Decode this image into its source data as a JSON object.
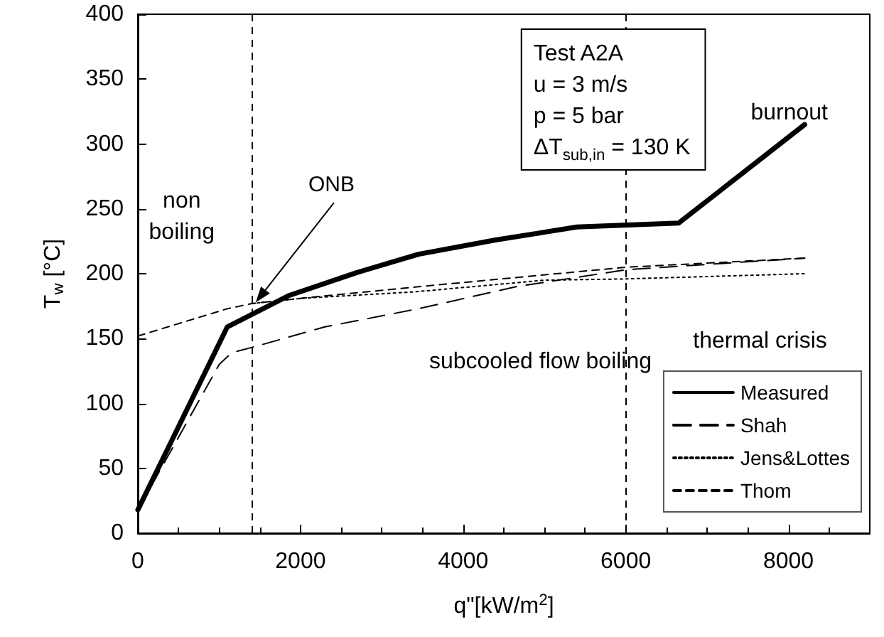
{
  "chart_data": {
    "type": "line",
    "xlabel": "q\"[kW/m$^{2}$]",
    "ylabel": "T$_{w}$ [°C]",
    "xlim": [
      0,
      9000
    ],
    "xticks": [
      0,
      2000,
      4000,
      6000,
      8000
    ],
    "ylim": [
      0,
      400
    ],
    "yticks": [
      0,
      50,
      100,
      150,
      200,
      250,
      300,
      350,
      400
    ],
    "grid": false,
    "legend": "bottom right",
    "marker": "none",
    "series": [
      {
        "name": "Measured",
        "color": "#000000",
        "line_style": "solid",
        "x": [
          0,
          1100,
          1850,
          2700,
          3450,
          4400,
          5400,
          6650,
          8200
        ],
        "values": [
          18,
          159,
          183,
          201,
          215,
          226,
          236,
          239,
          315
        ]
      },
      {
        "name": "Shah",
        "color": "#000000",
        "line_style": "longdash",
        "x": [
          0,
          1000,
          1150,
          1450,
          2300,
          3450,
          4650,
          6000,
          7200,
          8200
        ],
        "values": [
          18,
          130,
          139,
          144,
          159,
          173,
          190,
          203,
          208,
          212
        ]
      },
      {
        "name": "Jens&Lottes",
        "color": "#000000",
        "line_style": "dotted",
        "x": [
          1400,
          2000,
          3400,
          5000,
          6000,
          8200
        ],
        "values": [
          177,
          181,
          186,
          195,
          196,
          200
        ]
      },
      {
        "name": "Thom",
        "color": "#000000",
        "line_style": "dashed",
        "x": [
          0,
          1100,
          1400,
          2000,
          3450,
          6000,
          8200
        ],
        "values": [
          152,
          173,
          177,
          181,
          190,
          205,
          212
        ]
      }
    ],
    "ref_lines": [
      {
        "axis": "x",
        "value": 1400,
        "color": "#000000",
        "line_style": "dashed"
      },
      {
        "axis": "x",
        "value": 6000,
        "color": "#000000",
        "line_style": "dashed"
      }
    ],
    "annotations": [
      "Test A2A\nu = 3 m/s\np = 5 bar\nΔT$_{sub,in}$ = 130 K",
      "non\nboiling",
      {
        "text": "ONB",
        "x": 1450,
        "y": 178
      },
      "burnout",
      "thermal crisis",
      "subcooled flow boiling"
    ]
  }
}
